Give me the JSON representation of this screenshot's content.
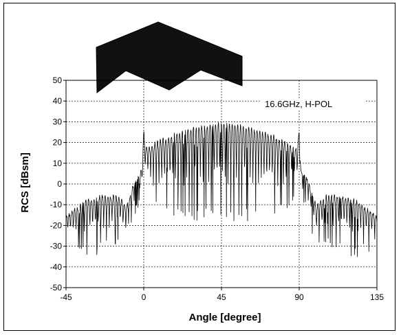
{
  "chart_data": {
    "type": "line",
    "title": "",
    "xlabel": "Angle [degree]",
    "ylabel": "RCS [dBsm]",
    "xlim": [
      -45,
      135
    ],
    "ylim": [
      -50,
      50
    ],
    "xticks": [
      -45,
      0,
      45,
      90,
      135
    ],
    "yticks": [
      -50,
      -40,
      -30,
      -20,
      -10,
      0,
      10,
      20,
      30,
      40,
      50
    ],
    "grid": true,
    "annotation": "16.6GHz, H-POL",
    "inset": "dihedral-corner-reflector-shape",
    "series": [
      {
        "envelope_x": [
          -45,
          -35,
          -25,
          -15,
          -10,
          -5,
          -1,
          0,
          1,
          5,
          15,
          25,
          35,
          45,
          55,
          65,
          75,
          85,
          89,
          90,
          91,
          95,
          100,
          105,
          115,
          125,
          135
        ],
        "envelope_y": [
          -15,
          -8,
          -5,
          -5,
          -10,
          3,
          8,
          27,
          18,
          20,
          24,
          27,
          29,
          30,
          29,
          27,
          24,
          20,
          18,
          27,
          8,
          3,
          -10,
          -5,
          -5,
          -8,
          -15
        ],
        "null_depth": [
          -25,
          -30,
          -28,
          -25,
          -28,
          -10,
          -5,
          10,
          0,
          -8,
          -10,
          -12,
          -12,
          -12,
          -12,
          -12,
          -10,
          -8,
          0,
          10,
          -5,
          -10,
          -28,
          -25,
          -28,
          -30,
          -25
        ]
      }
    ]
  }
}
